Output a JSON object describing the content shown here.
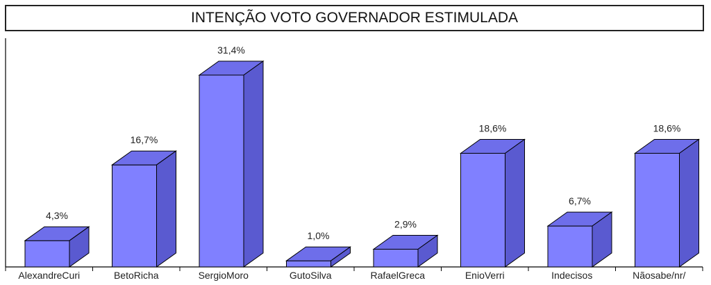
{
  "chart_data": {
    "type": "bar",
    "title": "INTENÇÃO VOTO GOVERNADOR ESTIMULADA",
    "categories": [
      "AlexandreCuri",
      "BetoRicha",
      "SergioMoro",
      "GutoSilva",
      "RafaelGreca",
      "EnioVerri",
      "Indecisos",
      "Nãosabe/nr/"
    ],
    "values": [
      4.3,
      16.7,
      31.4,
      1.0,
      2.9,
      18.6,
      6.7,
      18.6
    ],
    "value_labels": [
      "4,3%",
      "16,7%",
      "31,4%",
      "1,0%",
      "2,9%",
      "18,6%",
      "6,7%",
      "18,6%"
    ],
    "xlabel": "",
    "ylabel": "",
    "ylim": [
      0,
      31.4
    ],
    "grid": false,
    "colors": {
      "front": "#8080ff",
      "top": "#6e6eea",
      "side": "#5a5ad0",
      "edge": "#000000"
    }
  }
}
